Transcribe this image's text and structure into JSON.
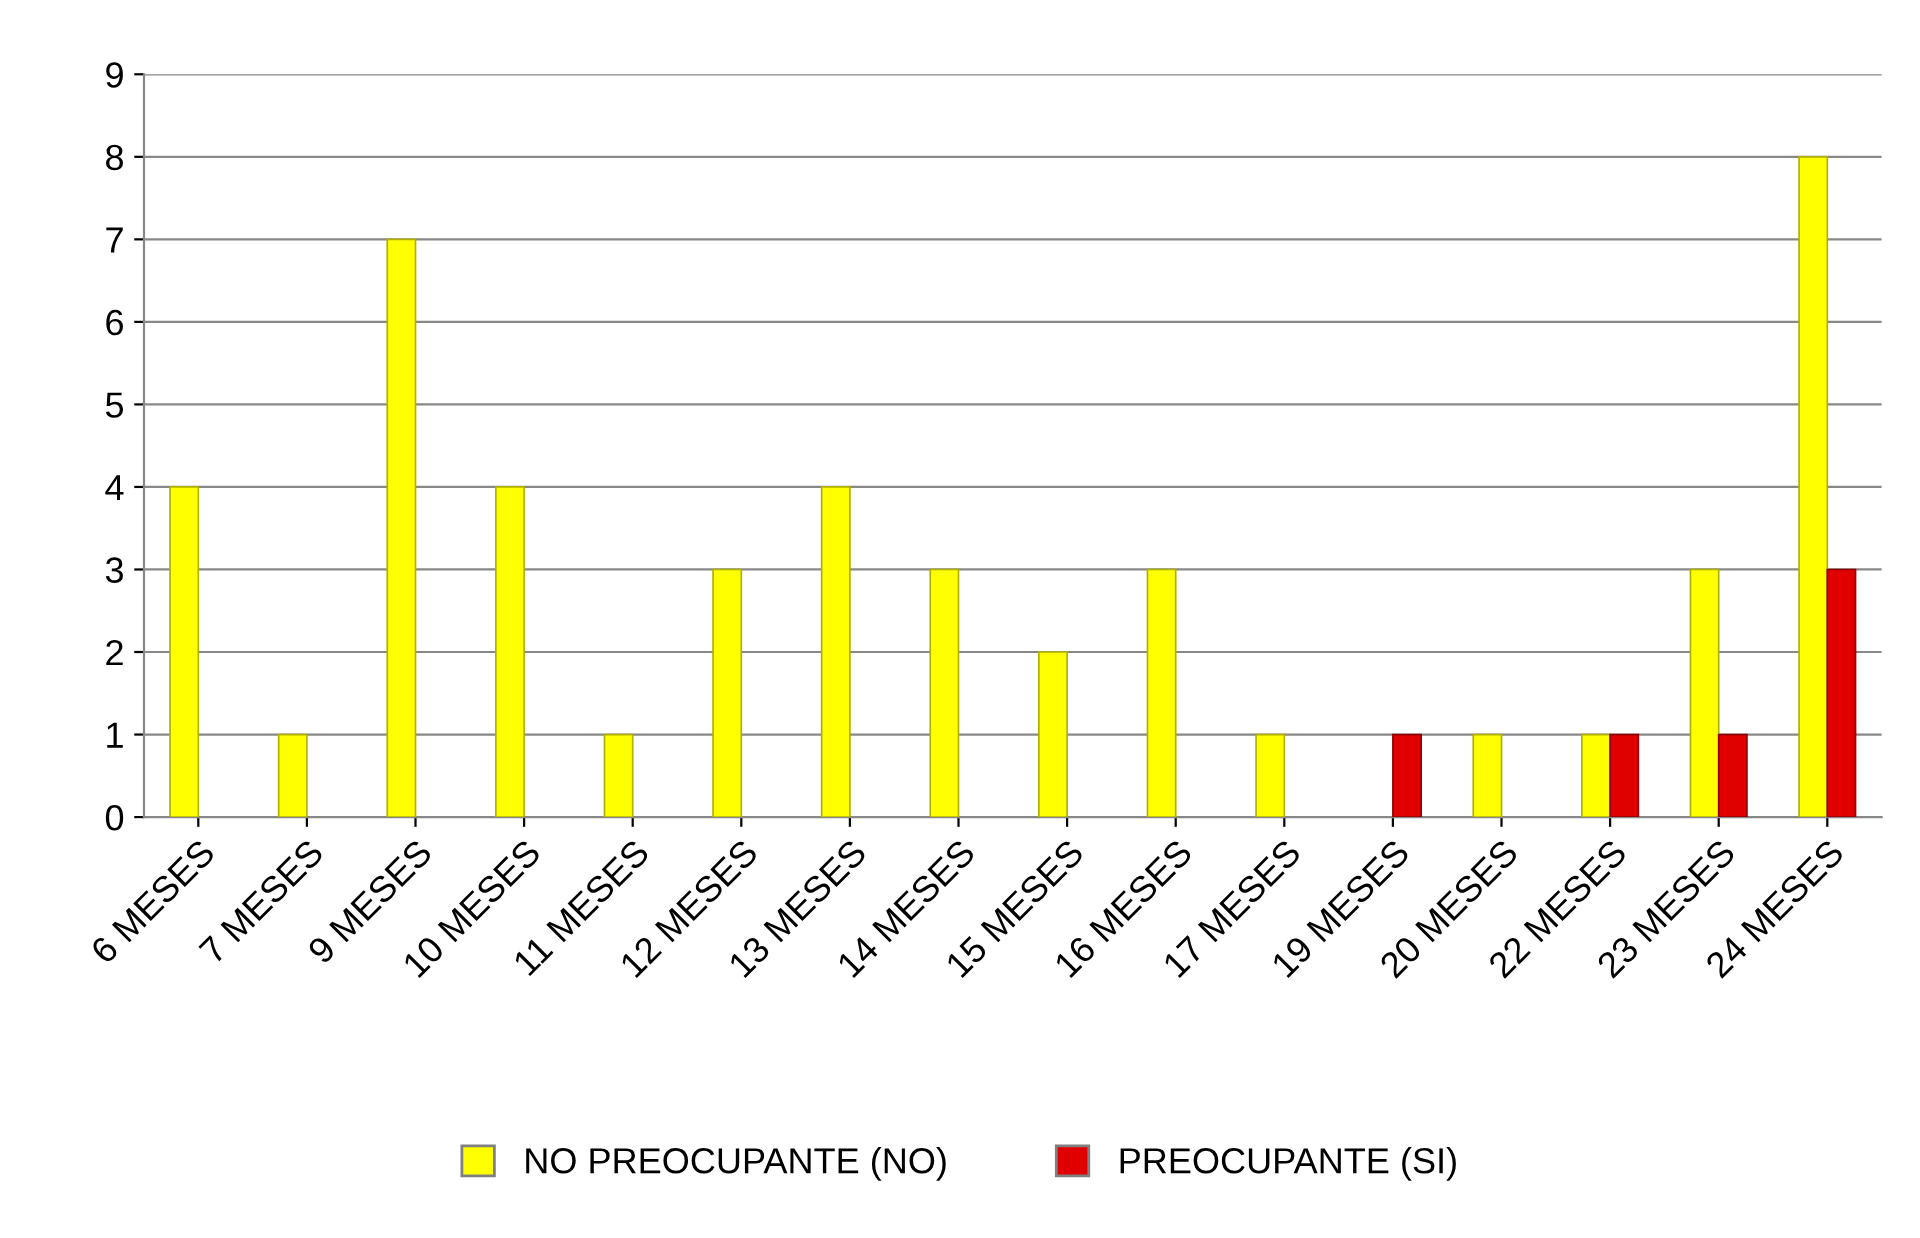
{
  "chart_data": {
    "type": "bar",
    "categories": [
      "6 MESES",
      "7 MESES",
      "9 MESES",
      "10 MESES",
      "11 MESES",
      "12 MESES",
      "13 MESES",
      "14 MESES",
      "15 MESES",
      "16 MESES",
      "17 MESES",
      "19 MESES",
      "20 MESES",
      "22 MESES",
      "23 MESES",
      "24 MESES"
    ],
    "series": [
      {
        "name": "NO PREOCUPANTE (NO)",
        "color": "#ffff00",
        "values": [
          4,
          1,
          7,
          4,
          1,
          3,
          4,
          3,
          2,
          3,
          1,
          null,
          1,
          1,
          3,
          8
        ]
      },
      {
        "name": "PREOCUPANTE (SI)",
        "color": "#e00000",
        "values": [
          null,
          null,
          null,
          null,
          null,
          null,
          null,
          null,
          null,
          null,
          null,
          1,
          null,
          1,
          1,
          3
        ]
      }
    ],
    "ylim": [
      0,
      9
    ],
    "yticks": [
      0,
      1,
      2,
      3,
      4,
      5,
      6,
      7,
      8,
      9
    ],
    "grid": "y",
    "legend": "bottom"
  }
}
